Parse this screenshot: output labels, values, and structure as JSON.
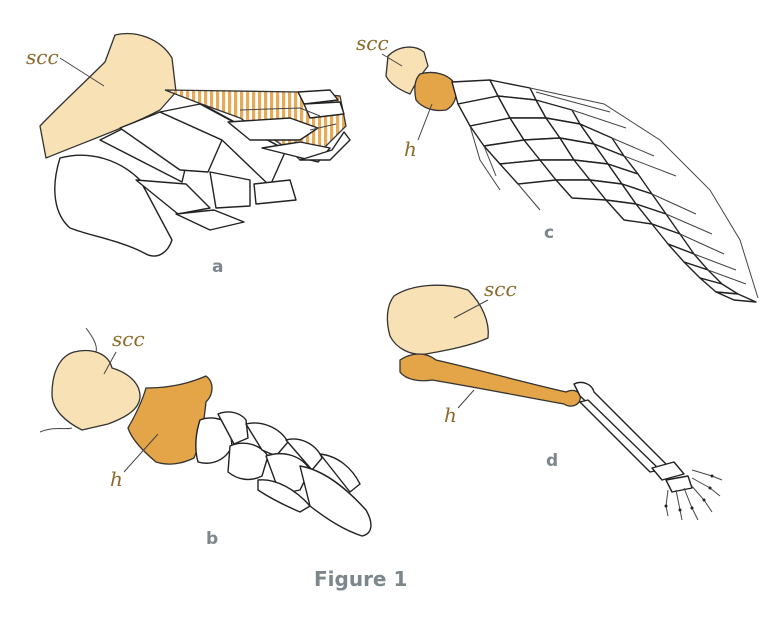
{
  "labels": {
    "scapulocoracoid": "scc",
    "humerus": "h"
  },
  "panels": {
    "a": "a",
    "b": "b",
    "c": "c",
    "d": "d"
  },
  "caption": "Figure 1",
  "colors": {
    "scapulocoracoid": "#f8e1b4",
    "humerus": "#e4a548",
    "label_text": "#8b6a2b",
    "panel_letters": "#7c878c",
    "outline": "#222222"
  }
}
